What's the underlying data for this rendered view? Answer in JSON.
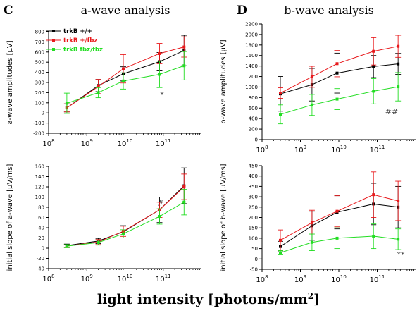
{
  "figure": {
    "x_axis_title": "light intensity [photons/mm",
    "x_axis_title_sup": "2",
    "x_axis_title_end": "]"
  },
  "chart_data": [
    {
      "id": "C",
      "panel_letter": "C",
      "title": "a-wave analysis",
      "type": "line",
      "xscale": "log",
      "xlim": [
        100000000,
        1000000000000
      ],
      "x_ticks": [
        {
          "mant": "10",
          "exp": "8"
        },
        {
          "mant": "10",
          "exp": "9"
        },
        {
          "mant": "10",
          "exp": "10"
        },
        {
          "mant": "10",
          "exp": "11"
        }
      ],
      "ylabel": "a-wave amplitudes [μV]",
      "ylim": [
        -200,
        800
      ],
      "yticks": [
        "-200",
        "-100",
        "0",
        "100",
        "200",
        "300",
        "400",
        "500",
        "600",
        "700",
        "800"
      ],
      "legend": {
        "placement": "top-left",
        "entries": [
          "trkB +/+",
          "trkB +/fbz",
          "trkB fbz/fbz"
        ]
      },
      "annotation": "*",
      "x": [
        300000000,
        2000000000,
        9000000000,
        80000000000,
        350000000000
      ],
      "series": [
        {
          "name": "trkB +/+",
          "color": "#000000",
          "values": [
            50,
            270,
            385,
            505,
            615
          ],
          "err": [
            40,
            60,
            70,
            90,
            150
          ]
        },
        {
          "name": "trkB +/fbz",
          "color": "#e8191c",
          "values": [
            50,
            260,
            435,
            585,
            650
          ],
          "err": [
            40,
            70,
            140,
            100,
            100
          ]
        },
        {
          "name": "trkB fbz/fbz",
          "color": "#22dd22",
          "values": [
            95,
            200,
            315,
            380,
            465
          ],
          "err": [
            100,
            50,
            80,
            130,
            140
          ]
        }
      ]
    },
    {
      "id": "D",
      "panel_letter": "D",
      "title": "b-wave analysis",
      "type": "line",
      "xscale": "log",
      "xlim": [
        100000000,
        1000000000000
      ],
      "x_ticks": [
        {
          "mant": "10",
          "exp": "8"
        },
        {
          "mant": "10",
          "exp": "9"
        },
        {
          "mant": "10",
          "exp": "10"
        },
        {
          "mant": "10",
          "exp": "11"
        }
      ],
      "ylabel": "b-wave amplitudes [μV]",
      "ylim": [
        0,
        2200
      ],
      "yticks": [
        "0",
        "200",
        "400",
        "600",
        "800",
        "1000",
        "1200",
        "1400",
        "1600",
        "1800",
        "2000",
        "2200"
      ],
      "annotation": "##",
      "x": [
        300000000,
        2000000000,
        9000000000,
        80000000000,
        350000000000
      ],
      "series": [
        {
          "name": "trkB +/+",
          "color": "#000000",
          "values": [
            870,
            1045,
            1265,
            1390,
            1440
          ],
          "err": [
            330,
            310,
            380,
            210,
            200
          ]
        },
        {
          "name": "trkB +/fbz",
          "color": "#e8191c",
          "values": [
            885,
            1195,
            1445,
            1680,
            1775
          ],
          "err": [
            100,
            200,
            250,
            260,
            210
          ]
        },
        {
          "name": "trkB fbz/fbz",
          "color": "#22dd22",
          "values": [
            480,
            660,
            770,
            920,
            1005
          ],
          "err": [
            180,
            200,
            200,
            240,
            270
          ]
        }
      ]
    },
    {
      "id": "C2",
      "type": "line",
      "xscale": "log",
      "xlim": [
        100000000,
        1000000000000
      ],
      "x_ticks": [
        {
          "mant": "10",
          "exp": "8"
        },
        {
          "mant": "10",
          "exp": "9"
        },
        {
          "mant": "10",
          "exp": "10"
        },
        {
          "mant": "10",
          "exp": "11"
        }
      ],
      "ylabel": "initial slope of a-wave [μV/ms]",
      "ylim": [
        -40,
        160
      ],
      "yticks": [
        "-40",
        "-20",
        "0",
        "20",
        "40",
        "60",
        "80",
        "100",
        "120",
        "140",
        "160"
      ],
      "annotation": "#",
      "x": [
        300000000,
        2000000000,
        9000000000,
        80000000000,
        350000000000
      ],
      "series": [
        {
          "name": "trkB +/+",
          "color": "#000000",
          "values": [
            5,
            14,
            32,
            75,
            122
          ],
          "err": [
            3,
            5,
            12,
            25,
            35
          ]
        },
        {
          "name": "trkB +/fbz",
          "color": "#e8191c",
          "values": [
            4,
            12,
            33,
            75,
            120
          ],
          "err": [
            3,
            5,
            10,
            15,
            25
          ]
        },
        {
          "name": "trkB fbz/fbz",
          "color": "#22dd22",
          "values": [
            4,
            11,
            28,
            62,
            90
          ],
          "err": [
            3,
            5,
            8,
            15,
            25
          ]
        }
      ]
    },
    {
      "id": "D2",
      "type": "line",
      "xscale": "log",
      "xlim": [
        100000000,
        1000000000000
      ],
      "x_ticks": [
        {
          "mant": "10",
          "exp": "8"
        },
        {
          "mant": "10",
          "exp": "9"
        },
        {
          "mant": "10",
          "exp": "10"
        },
        {
          "mant": "10",
          "exp": "11"
        }
      ],
      "ylabel": "initial slope of b-wave [μV/ms]",
      "ylim": [
        -50,
        450
      ],
      "yticks": [
        "-50",
        "0",
        "50",
        "100",
        "150",
        "200",
        "250",
        "300",
        "350",
        "400",
        "450"
      ],
      "annotation": "**",
      "x": [
        300000000,
        2000000000,
        9000000000,
        80000000000,
        350000000000
      ],
      "series": [
        {
          "name": "trkB +/+",
          "color": "#000000",
          "values": [
            60,
            160,
            225,
            265,
            250
          ],
          "err": [
            25,
            70,
            80,
            100,
            100
          ]
        },
        {
          "name": "trkB +/fbz",
          "color": "#e8191c",
          "values": [
            90,
            175,
            230,
            310,
            280
          ],
          "err": [
            50,
            60,
            75,
            110,
            95
          ]
        },
        {
          "name": "trkB fbz/fbz",
          "color": "#22dd22",
          "values": [
            30,
            80,
            100,
            110,
            95
          ],
          "err": [
            10,
            40,
            50,
            60,
            50
          ]
        }
      ]
    }
  ]
}
